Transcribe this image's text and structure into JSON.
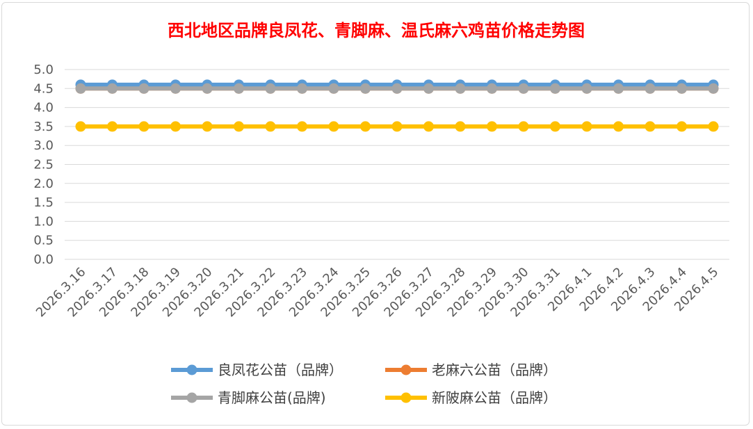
{
  "chart_data": {
    "type": "line",
    "title": "西北地区品牌良凤花、青脚麻、温氏麻六鸡苗价格走势图",
    "xlabel": "",
    "ylabel": "",
    "ylim": [
      0,
      5.0
    ],
    "yticks": [
      "5.0",
      "4.5",
      "4.0",
      "3.5",
      "3.0",
      "2.5",
      "2.0",
      "1.5",
      "1.0",
      "0.5",
      "0.0"
    ],
    "ytick_values": [
      5.0,
      4.5,
      4.0,
      3.5,
      3.0,
      2.5,
      2.0,
      1.5,
      1.0,
      0.5,
      0.0
    ],
    "grid": true,
    "legend_position": "bottom",
    "categories": [
      "2026.3.16",
      "2026.3.17",
      "2026.3.18",
      "2026.3.19",
      "2026.3.20",
      "2026.3.21",
      "2026.3.22",
      "2026.3.23",
      "2026.3.24",
      "2026.3.25",
      "2026.3.26",
      "2026.3.27",
      "2026.3.28",
      "2026.3.29",
      "2026.3.30",
      "2026.3.31",
      "2026.4.1",
      "2026.4.2",
      "2026.4.3",
      "2026.4.4",
      "2026.4.5"
    ],
    "series": [
      {
        "name": "良凤花公苗（品牌）",
        "color": "#5b9bd5",
        "values": [
          4.6,
          4.6,
          4.6,
          4.6,
          4.6,
          4.6,
          4.6,
          4.6,
          4.6,
          4.6,
          4.6,
          4.6,
          4.6,
          4.6,
          4.6,
          4.6,
          4.6,
          4.6,
          4.6,
          4.6,
          4.6
        ]
      },
      {
        "name": "老麻六公苗（品牌）",
        "color": "#ed7d31",
        "values": [
          4.5,
          4.5,
          4.5,
          4.5,
          4.5,
          4.5,
          4.5,
          4.5,
          4.5,
          4.5,
          4.5,
          4.5,
          4.5,
          4.5,
          4.5,
          4.5,
          4.5,
          4.5,
          4.5,
          4.5,
          4.5
        ]
      },
      {
        "name": "青脚麻公苗(品牌)",
        "color": "#a5a5a5",
        "values": [
          4.5,
          4.5,
          4.5,
          4.5,
          4.5,
          4.5,
          4.5,
          4.5,
          4.5,
          4.5,
          4.5,
          4.5,
          4.5,
          4.5,
          4.5,
          4.5,
          4.5,
          4.5,
          4.5,
          4.5,
          4.5
        ]
      },
      {
        "name": "新陂麻公苗（品牌）",
        "color": "#ffc000",
        "values": [
          3.5,
          3.5,
          3.5,
          3.5,
          3.5,
          3.5,
          3.5,
          3.5,
          3.5,
          3.5,
          3.5,
          3.5,
          3.5,
          3.5,
          3.5,
          3.5,
          3.5,
          3.5,
          3.5,
          3.5,
          3.5
        ]
      }
    ]
  }
}
